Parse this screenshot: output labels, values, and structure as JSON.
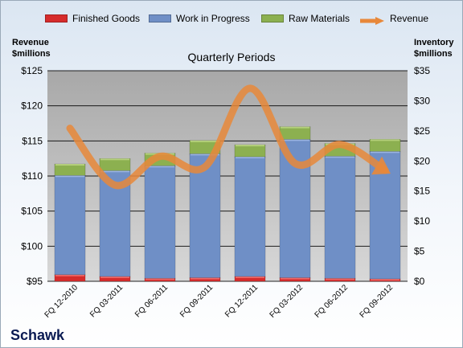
{
  "chart_data": {
    "type": "bar",
    "title": "Quarterly Periods",
    "brand": "Schawk",
    "categories": [
      "FQ 12-2010",
      "FQ 03-2011",
      "FQ 06-2011",
      "FQ 09-2011",
      "FQ 12-2011",
      "FQ 03-2012",
      "FQ 06-2012",
      "FQ 09-2012"
    ],
    "stacked": true,
    "left_axis": {
      "title_line1": "Revenue",
      "title_line2": "$millions",
      "ylim": [
        95,
        125
      ],
      "ticks": [
        95,
        100,
        105,
        110,
        115,
        120,
        125
      ],
      "tick_labels": [
        "$95",
        "$100",
        "$105",
        "$110",
        "$115",
        "$120",
        "$125"
      ]
    },
    "right_axis": {
      "title_line1": "Inventory",
      "title_line2": "$millions",
      "ylim": [
        0,
        35
      ],
      "ticks": [
        0,
        5,
        10,
        15,
        20,
        25,
        30,
        35
      ],
      "tick_labels": [
        "$0",
        "$5",
        "$10",
        "$15",
        "$20",
        "$25",
        "$30",
        "$35"
      ]
    },
    "series": [
      {
        "name": "Finished Goods",
        "axis": "right",
        "color": "#d62c2c",
        "values": [
          1.1,
          0.8,
          0.5,
          0.6,
          0.8,
          0.6,
          0.5,
          0.4
        ]
      },
      {
        "name": "Work in Progress",
        "axis": "right",
        "color": "#6f8fc6",
        "values": [
          16.5,
          17.6,
          18.7,
          20.6,
          19.9,
          23.0,
          20.3,
          21.2
        ]
      },
      {
        "name": "Raw Materials",
        "axis": "right",
        "color": "#8cb050",
        "values": [
          1.9,
          2.0,
          2.1,
          2.2,
          2.0,
          2.1,
          2.1,
          2.0
        ]
      },
      {
        "name": "Revenue",
        "axis": "left",
        "type": "line",
        "color": "#e8883a",
        "values": [
          116.8,
          108.7,
          112.8,
          111.3,
          122.5,
          111.8,
          114.5,
          110.8
        ]
      }
    ],
    "grid": true,
    "legend_position": "top"
  }
}
